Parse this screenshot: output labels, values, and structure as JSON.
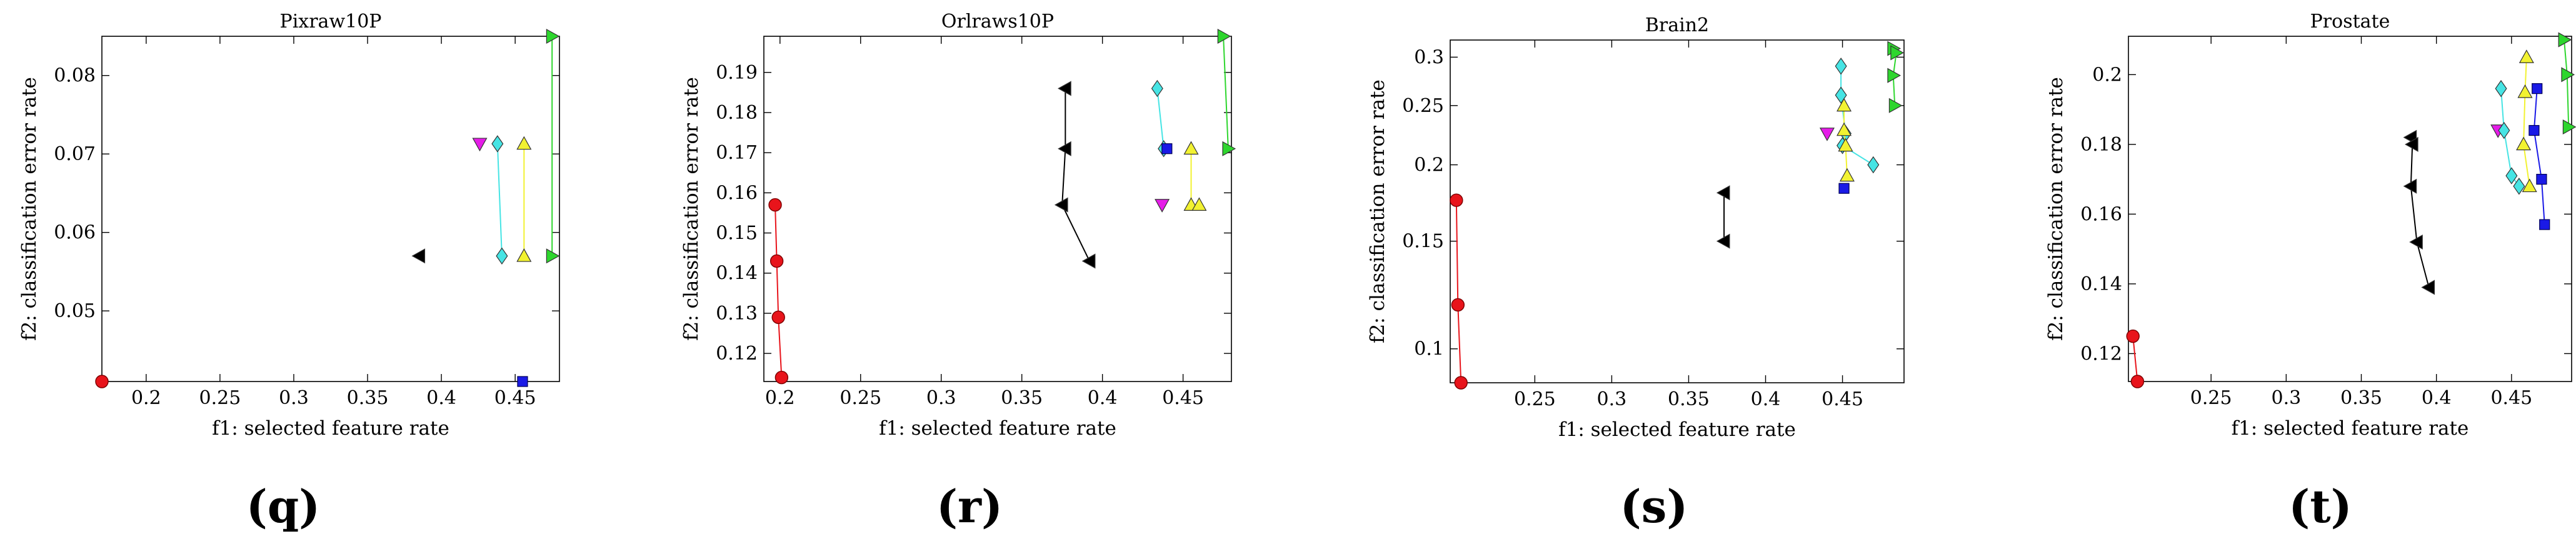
{
  "figure": {
    "xlabel": "f1: selected feature rate",
    "ylabel": "f2: classification error rate"
  },
  "chart_data": [
    {
      "type": "scatter",
      "title": "Pixraw10P",
      "panel_label": "(q)",
      "xlabel": "f1: selected feature rate",
      "ylabel": "f2: classification error rate",
      "xlim": [
        0.17,
        0.48
      ],
      "ylim": [
        0.041,
        0.085
      ],
      "xticks": [
        0.2,
        0.25,
        0.3,
        0.35,
        0.4,
        0.45
      ],
      "xtick_labels": [
        "0.2",
        "0.25",
        "0.3",
        "0.35",
        "0.4",
        "0.45"
      ],
      "yticks": [
        0.05,
        0.06,
        0.07,
        0.08
      ],
      "ytick_labels": [
        "0.05",
        "0.06",
        "0.07",
        "0.08"
      ],
      "series": [
        {
          "name": "red circles",
          "marker": "circle",
          "color": "#e8141b",
          "line": false,
          "points": [
            [
              0.17,
              0.041
            ]
          ]
        },
        {
          "name": "black left triangles",
          "marker": "tri-left",
          "color": "#000000",
          "line": false,
          "points": [
            [
              0.385,
              0.057
            ]
          ]
        },
        {
          "name": "magenta down triangles",
          "marker": "tri-down",
          "color": "#e51ce8",
          "line": false,
          "points": [
            [
              0.426,
              0.0713
            ]
          ]
        },
        {
          "name": "cyan diamonds",
          "marker": "diamond",
          "color": "#46e4e4",
          "line": true,
          "points": [
            [
              0.438,
              0.0713
            ],
            [
              0.441,
              0.057
            ]
          ]
        },
        {
          "name": "yellow up triangles",
          "marker": "tri-up",
          "color": "#f2f231",
          "line": true,
          "points": [
            [
              0.456,
              0.0713
            ],
            [
              0.456,
              0.057
            ]
          ]
        },
        {
          "name": "blue squares",
          "marker": "square",
          "color": "#1a1ae6",
          "line": false,
          "points": [
            [
              0.455,
              0.041
            ]
          ]
        },
        {
          "name": "green right triangles",
          "marker": "tri-right",
          "color": "#2ed62e",
          "line": true,
          "points": [
            [
              0.475,
              0.085
            ],
            [
              0.475,
              0.057
            ]
          ]
        }
      ]
    },
    {
      "type": "scatter",
      "title": "Orlraws10P",
      "panel_label": "(r)",
      "xlabel": "f1: selected feature rate",
      "ylabel": "f2: classification error rate",
      "xlim": [
        0.19,
        0.48
      ],
      "ylim": [
        0.113,
        0.199
      ],
      "xticks": [
        0.2,
        0.25,
        0.3,
        0.35,
        0.4,
        0.45
      ],
      "xtick_labels": [
        "0.2",
        "0.25",
        "0.3",
        "0.35",
        "0.4",
        "0.45"
      ],
      "yticks": [
        0.12,
        0.13,
        0.14,
        0.15,
        0.16,
        0.17,
        0.18,
        0.19
      ],
      "ytick_labels": [
        "0.12",
        "0.13",
        "0.14",
        "0.15",
        "0.16",
        "0.17",
        "0.18",
        "0.19"
      ],
      "series": [
        {
          "name": "red circles",
          "marker": "circle",
          "color": "#e8141b",
          "line": true,
          "points": [
            [
              0.197,
              0.157
            ],
            [
              0.198,
              0.143
            ],
            [
              0.199,
              0.129
            ],
            [
              0.201,
              0.114
            ]
          ]
        },
        {
          "name": "black left triangles",
          "marker": "tri-left",
          "color": "#000000",
          "line": true,
          "points": [
            [
              0.377,
              0.186
            ],
            [
              0.377,
              0.171
            ],
            [
              0.375,
              0.157
            ],
            [
              0.392,
              0.143
            ]
          ]
        },
        {
          "name": "magenta down triangles",
          "marker": "tri-down",
          "color": "#e51ce8",
          "line": false,
          "points": [
            [
              0.437,
              0.157
            ]
          ]
        },
        {
          "name": "cyan diamonds",
          "marker": "diamond",
          "color": "#46e4e4",
          "line": true,
          "points": [
            [
              0.434,
              0.186
            ],
            [
              0.438,
              0.171
            ]
          ]
        },
        {
          "name": "blue squares",
          "marker": "square",
          "color": "#1a1ae6",
          "line": false,
          "points": [
            [
              0.44,
              0.171
            ]
          ]
        },
        {
          "name": "yellow up triangles",
          "marker": "tri-up",
          "color": "#f2f231",
          "line": true,
          "points": [
            [
              0.455,
              0.171
            ],
            [
              0.455,
              0.157
            ],
            [
              0.46,
              0.157
            ]
          ]
        },
        {
          "name": "green right triangles",
          "marker": "tri-right",
          "color": "#2ed62e",
          "line": true,
          "points": [
            [
              0.475,
              0.199
            ],
            [
              0.478,
              0.171
            ]
          ]
        }
      ]
    },
    {
      "type": "scatter",
      "title": "Brain2",
      "panel_label": "(s)",
      "xlabel": "f1: selected feature rate",
      "ylabel": "f2: classification error rate",
      "xlim": [
        0.195,
        0.49
      ],
      "ylim": [
        0.088,
        0.32
      ],
      "yscale": "log",
      "xticks": [
        0.25,
        0.3,
        0.35,
        0.4,
        0.45
      ],
      "xtick_labels": [
        "0.25",
        "0.3",
        "0.35",
        "0.4",
        "0.45"
      ],
      "yticks": [
        0.1,
        0.15,
        0.2,
        0.25,
        0.3
      ],
      "ytick_labels": [
        "0.1",
        "0.15",
        "0.2",
        "0.25",
        "0.3"
      ],
      "series": [
        {
          "name": "red circles",
          "marker": "circle",
          "color": "#e8141b",
          "line": true,
          "points": [
            [
              0.199,
              0.175
            ],
            [
              0.2,
              0.118
            ],
            [
              0.202,
              0.088
            ]
          ]
        },
        {
          "name": "black left triangles",
          "marker": "tri-left",
          "color": "#000000",
          "line": true,
          "points": [
            [
              0.373,
              0.18
            ],
            [
              0.373,
              0.15
            ]
          ]
        },
        {
          "name": "magenta down triangles",
          "marker": "tri-down",
          "color": "#e51ce8",
          "line": false,
          "points": [
            [
              0.44,
              0.225
            ]
          ]
        },
        {
          "name": "cyan diamonds",
          "marker": "diamond",
          "color": "#46e4e4",
          "line": true,
          "points": [
            [
              0.449,
              0.29
            ],
            [
              0.449,
              0.26
            ],
            [
              0.452,
              0.225
            ],
            [
              0.45,
              0.215
            ],
            [
              0.47,
              0.2
            ]
          ]
        },
        {
          "name": "blue squares",
          "marker": "square",
          "color": "#1a1ae6",
          "line": false,
          "points": [
            [
              0.451,
              0.183
            ]
          ]
        },
        {
          "name": "yellow up triangles",
          "marker": "tri-up",
          "color": "#f2f231",
          "line": true,
          "points": [
            [
              0.451,
              0.25
            ],
            [
              0.451,
              0.228
            ],
            [
              0.452,
              0.215
            ],
            [
              0.453,
              0.192
            ]
          ]
        },
        {
          "name": "green right triangles",
          "marker": "tri-right",
          "color": "#2ed62e",
          "line": true,
          "points": [
            [
              0.483,
              0.31
            ],
            [
              0.485,
              0.305
            ],
            [
              0.483,
              0.28
            ],
            [
              0.484,
              0.25
            ]
          ]
        }
      ]
    },
    {
      "type": "scatter",
      "title": "Prostate",
      "panel_label": "(t)",
      "xlabel": "f1: selected feature rate",
      "ylabel": "f2: classification error rate",
      "xlim": [
        0.195,
        0.49
      ],
      "ylim": [
        0.112,
        0.211
      ],
      "xticks": [
        0.25,
        0.3,
        0.35,
        0.4,
        0.45
      ],
      "xtick_labels": [
        "0.25",
        "0.3",
        "0.35",
        "0.4",
        "0.45"
      ],
      "yticks": [
        0.12,
        0.14,
        0.16,
        0.18,
        0.2
      ],
      "ytick_labels": [
        "0.12",
        "0.14",
        "0.16",
        "0.18",
        "0.2"
      ],
      "series": [
        {
          "name": "red circles",
          "marker": "circle",
          "color": "#e8141b",
          "line": true,
          "points": [
            [
              0.198,
              0.125
            ],
            [
              0.201,
              0.112
            ]
          ]
        },
        {
          "name": "black left triangles",
          "marker": "tri-left",
          "color": "#000000",
          "line": true,
          "points": [
            [
              0.383,
              0.182
            ],
            [
              0.384,
              0.18
            ],
            [
              0.383,
              0.168
            ],
            [
              0.387,
              0.152
            ],
            [
              0.395,
              0.139
            ]
          ]
        },
        {
          "name": "magenta down triangles",
          "marker": "tri-down",
          "color": "#e51ce8",
          "line": false,
          "points": [
            [
              0.441,
              0.184
            ]
          ]
        },
        {
          "name": "cyan diamonds",
          "marker": "diamond",
          "color": "#46e4e4",
          "line": true,
          "points": [
            [
              0.443,
              0.196
            ],
            [
              0.445,
              0.184
            ],
            [
              0.45,
              0.171
            ],
            [
              0.455,
              0.168
            ]
          ]
        },
        {
          "name": "yellow up triangles",
          "marker": "tri-up",
          "color": "#f2f231",
          "line": true,
          "points": [
            [
              0.46,
              0.205
            ],
            [
              0.459,
              0.195
            ],
            [
              0.458,
              0.18
            ],
            [
              0.462,
              0.168
            ]
          ]
        },
        {
          "name": "blue squares",
          "marker": "square",
          "color": "#1a1ae6",
          "line": true,
          "points": [
            [
              0.467,
              0.196
            ],
            [
              0.465,
              0.184
            ],
            [
              0.47,
              0.17
            ],
            [
              0.472,
              0.157
            ]
          ]
        },
        {
          "name": "green right triangles",
          "marker": "tri-right",
          "color": "#2ed62e",
          "line": true,
          "points": [
            [
              0.485,
              0.21
            ],
            [
              0.487,
              0.2
            ],
            [
              0.488,
              0.185
            ]
          ]
        }
      ]
    }
  ]
}
